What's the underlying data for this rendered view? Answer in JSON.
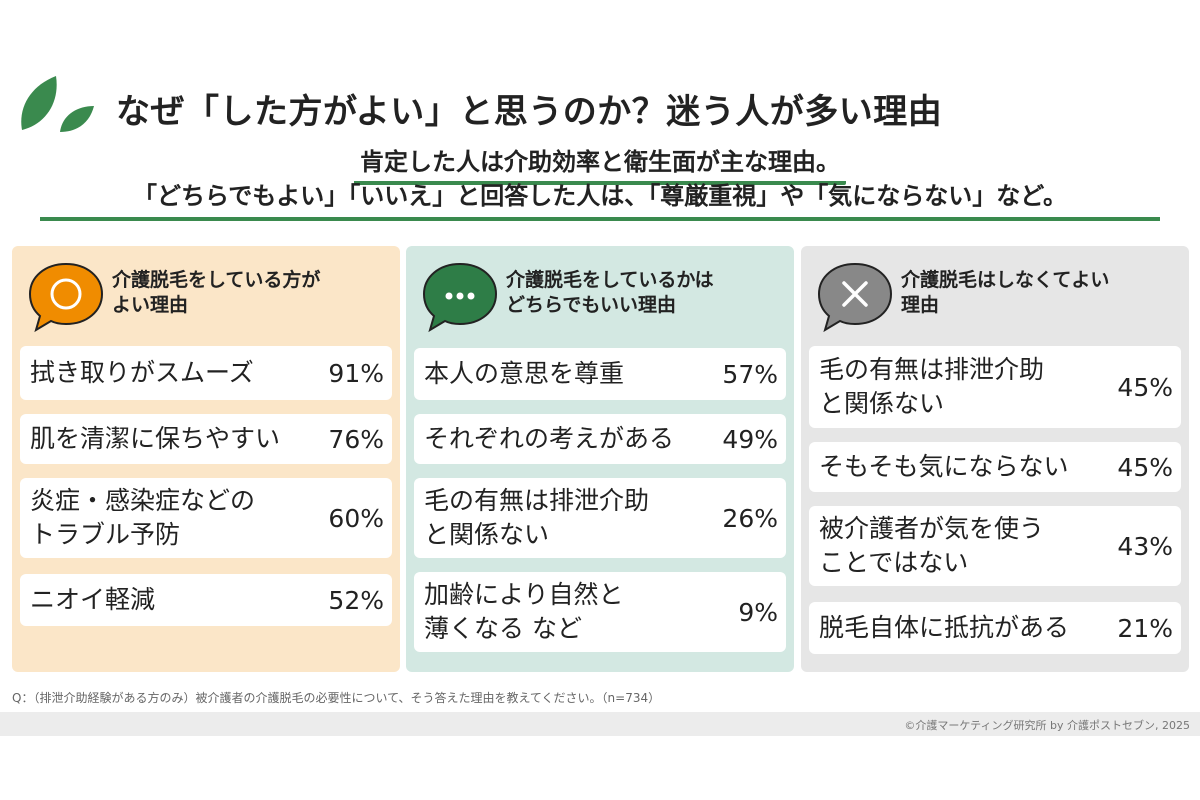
{
  "title": "なぜ「した方がよい」と思うのか？迷う人が多い理由",
  "subtitle_line1": "肯定した人は介助効率と衛生面が主な理由。",
  "subtitle_line2": "「どちらでもよい」「いいえ」と回答した人は、「尊厳重視」や「気にならない」など。",
  "colors": {
    "accent_green": "#3a8a4e",
    "panel1_bg": "#fbe6c8",
    "panel2_bg": "#d3e8e2",
    "panel3_bg": "#e6e6e6",
    "icon_orange": "#f08c00",
    "icon_green": "#2e7d47",
    "icon_gray": "#888888"
  },
  "panels": [
    {
      "icon": "circle-icon",
      "heading": [
        "介護脱毛をしている方が",
        "よい理由"
      ],
      "items": [
        {
          "label": [
            "拭き取りがスムーズ"
          ],
          "pct": "91%"
        },
        {
          "label": [
            "肌を清潔に保ちやすい"
          ],
          "pct": "76%"
        },
        {
          "label": [
            "炎症・感染症などの",
            "トラブル予防"
          ],
          "pct": "60%"
        },
        {
          "label": [
            "ニオイ軽減"
          ],
          "pct": "52%"
        }
      ]
    },
    {
      "icon": "ellipsis-icon",
      "heading": [
        "介護脱毛をしているかは",
        "どちらでもいい理由"
      ],
      "items": [
        {
          "label": [
            "本人の意思を尊重"
          ],
          "pct": "57%"
        },
        {
          "label": [
            "それぞれの考えがある"
          ],
          "pct": "49%"
        },
        {
          "label": [
            "毛の有無は排泄介助",
            "と関係ない"
          ],
          "pct": "26%"
        },
        {
          "label": [
            "加齢により自然と",
            "薄くなる など"
          ],
          "pct": "9%"
        }
      ]
    },
    {
      "icon": "cross-icon",
      "heading": [
        "介護脱毛はしなくてよい",
        "理由"
      ],
      "items": [
        {
          "label": [
            "毛の有無は排泄介助",
            "と関係ない"
          ],
          "pct": "45%"
        },
        {
          "label": [
            "そもそも気にならない"
          ],
          "pct": "45%"
        },
        {
          "label": [
            "被介護者が気を使う",
            "ことではない"
          ],
          "pct": "43%"
        },
        {
          "label": [
            "脱毛自体に抵抗がある"
          ],
          "pct": "21%"
        }
      ]
    }
  ],
  "footnote": "Q：（排泄介助経験がある方のみ）被介護者の介護脱毛の必要性について、そう答えた理由を教えてください。（n=734）",
  "copyright": "©介護マーケティング研究所 by 介護ポストセブン, 2025"
}
